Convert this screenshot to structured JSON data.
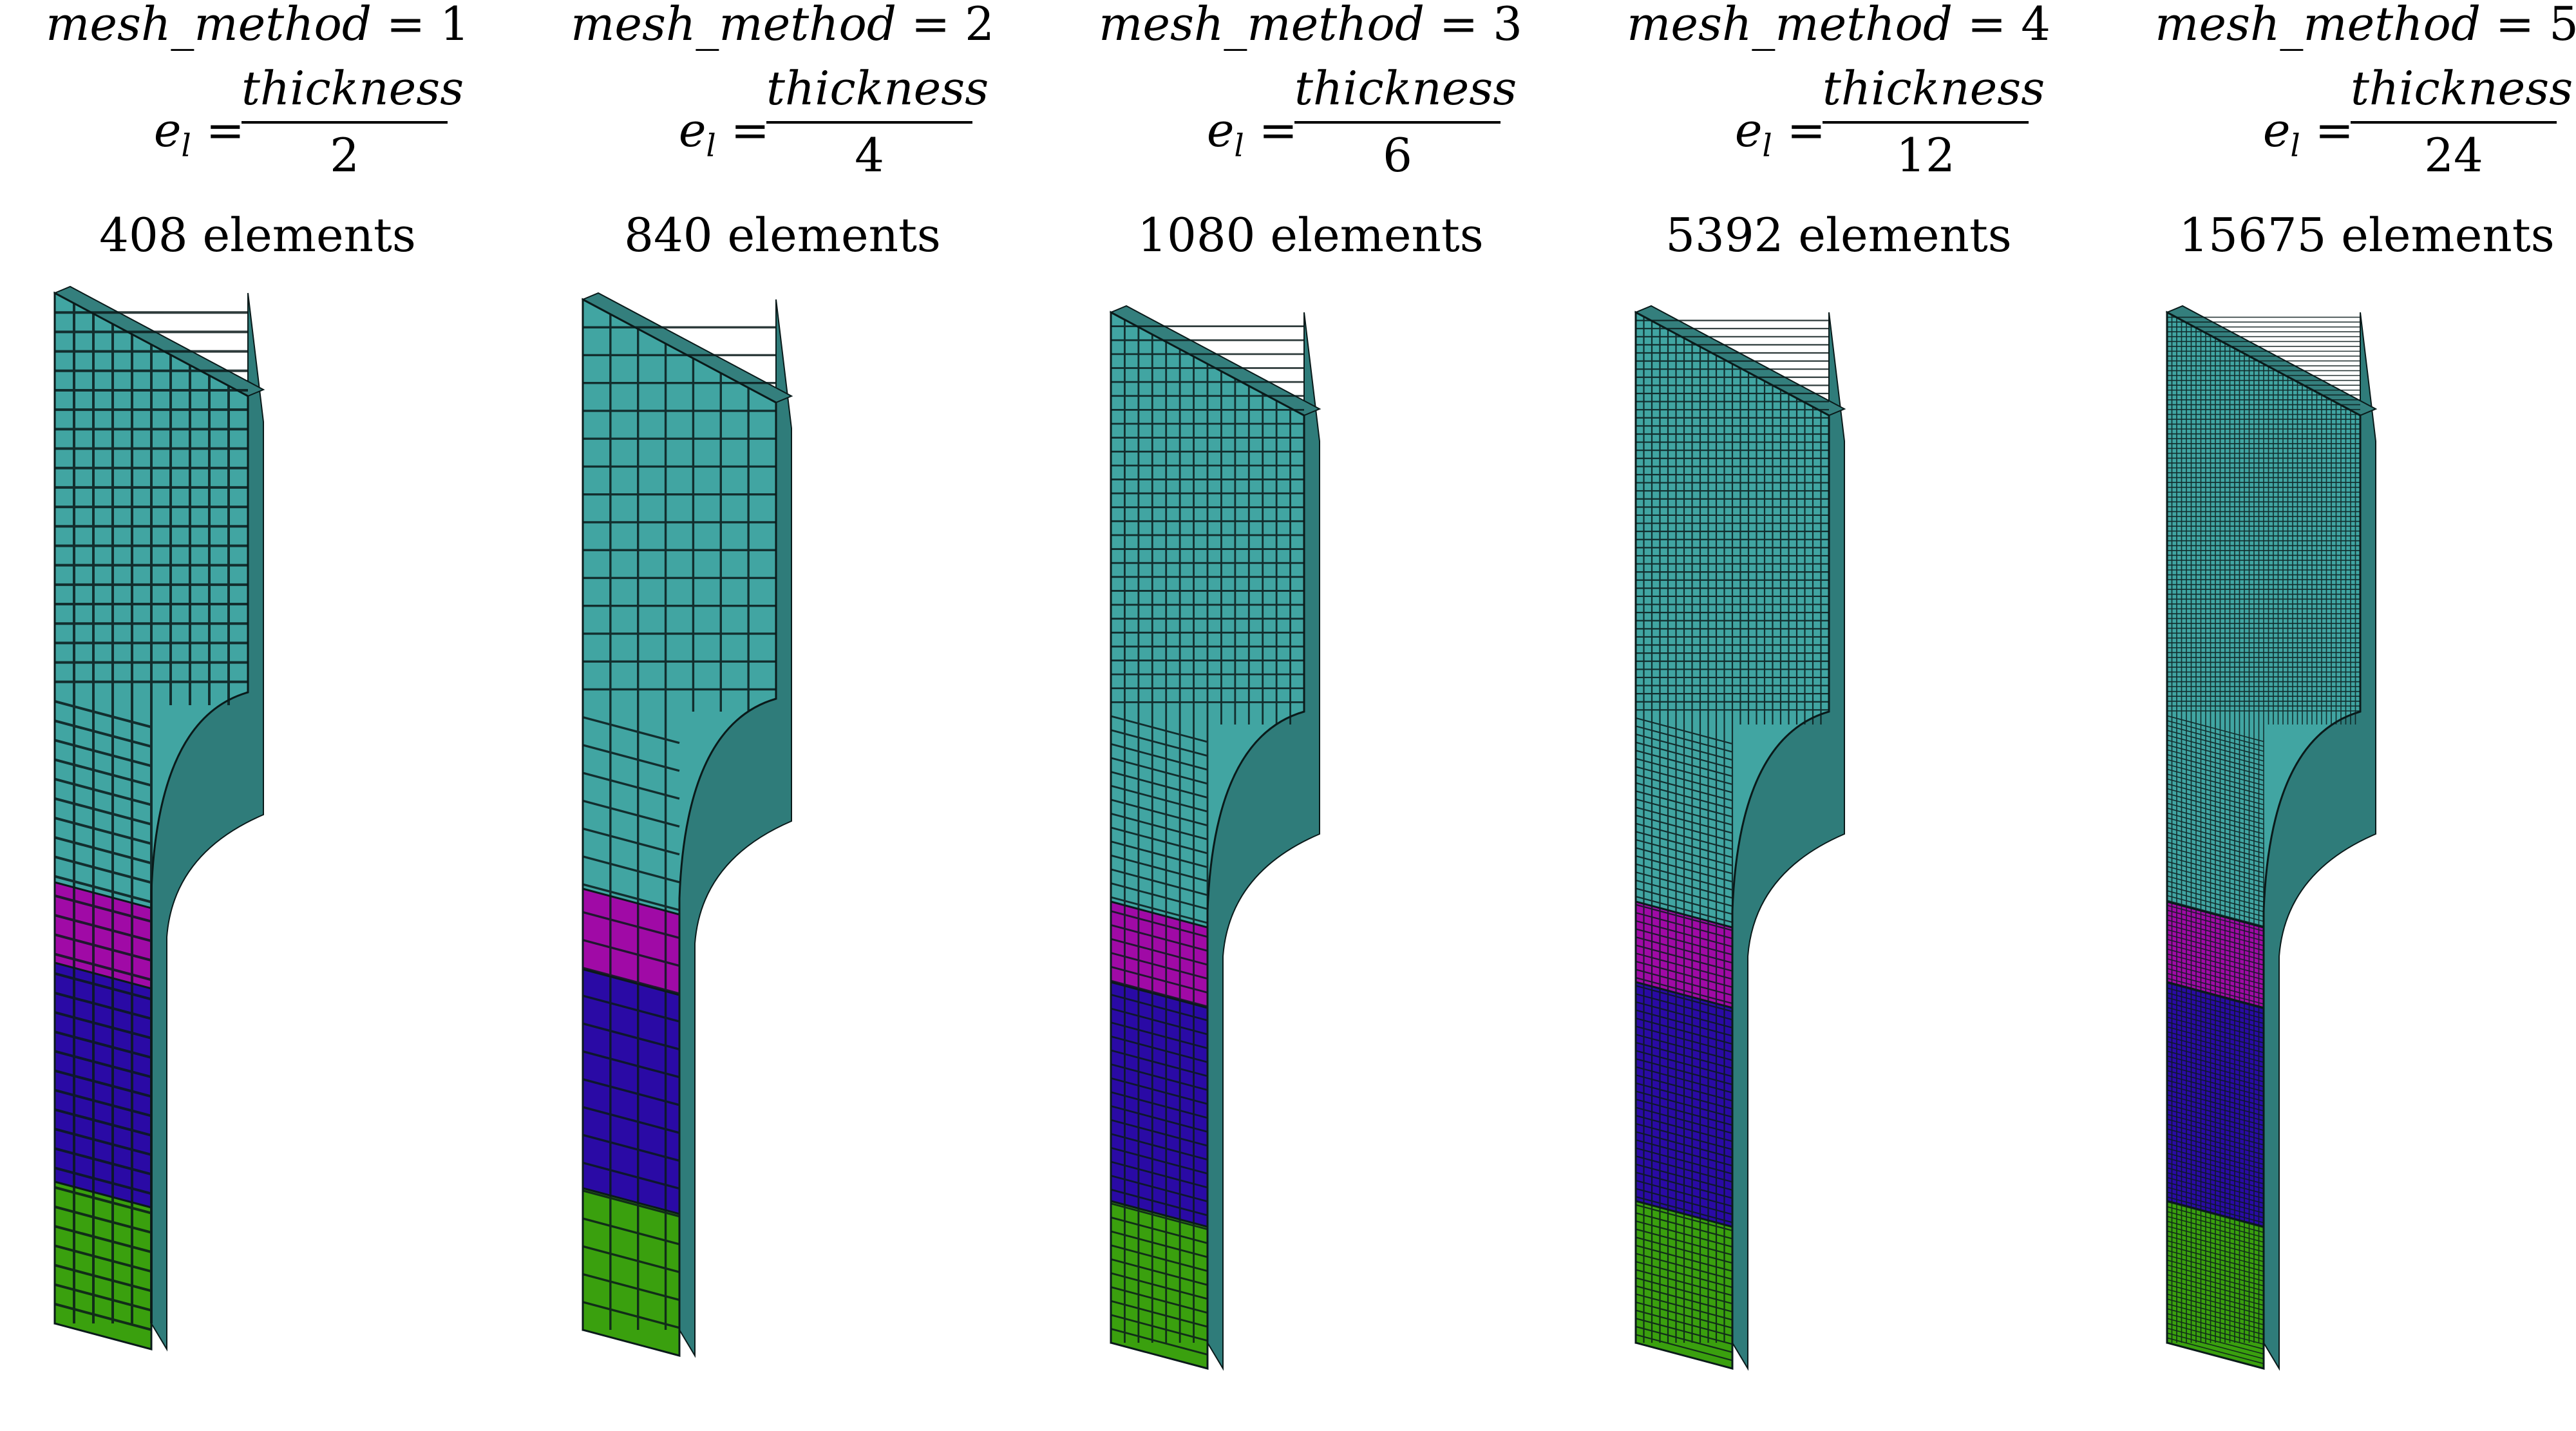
{
  "figure": {
    "eq_symbol": "=",
    "lhs_base": "e",
    "lhs_sub": "l",
    "numerator": "thickness",
    "region_colors": {
      "upper_block": "#41a5a2",
      "band_magenta": "#a00aa6",
      "band_blue": "#2a0aa5",
      "band_green": "#3aa00e",
      "grid_line": "#0a1a1a"
    },
    "panels": [
      {
        "method_label": "mesh_method",
        "method_value": "1",
        "denominator": "2",
        "element_count": "408 elements",
        "grid_div": 10
      },
      {
        "method_label": "mesh_method",
        "method_value": "2",
        "denominator": "4",
        "element_count": "840 elements",
        "grid_div": 7
      },
      {
        "method_label": "mesh_method",
        "method_value": "3",
        "denominator": "6",
        "element_count": "1080 elements",
        "grid_div": 14
      },
      {
        "method_label": "mesh_method",
        "method_value": "4",
        "denominator": "12",
        "element_count": "5392 elements",
        "grid_div": 24
      },
      {
        "method_label": "mesh_method",
        "method_value": "5",
        "denominator": "24",
        "element_count": "15675 elements",
        "grid_div": 40
      }
    ]
  }
}
